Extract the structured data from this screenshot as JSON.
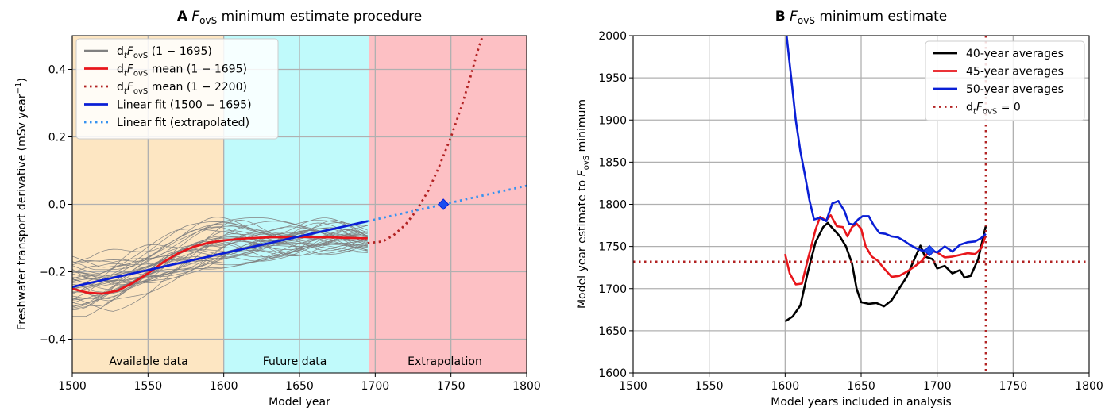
{
  "chart_data": [
    {
      "type": "line",
      "panel": "A",
      "title": "F_ovS minimum estimate procedure",
      "xlabel": "Model year",
      "ylabel": "Freshwater transport derivative (mSv year⁻¹)",
      "xlim": [
        1500,
        1800
      ],
      "ylim": [
        -0.5,
        0.5
      ],
      "xticks": [
        1500,
        1550,
        1600,
        1650,
        1700,
        1750,
        1800
      ],
      "yticks": [
        -0.4,
        -0.2,
        0.0,
        0.2,
        0.4
      ],
      "xtick_labels": [
        "1500",
        "1550",
        "1600",
        "1650",
        "1700",
        "1750",
        "1800"
      ],
      "ytick_labels": [
        "−0.4",
        "−0.2",
        "0.0",
        "0.2",
        "0.4"
      ],
      "grid": true,
      "legend_position": "top-left",
      "regions": [
        {
          "label": "Available data",
          "x0": 1500,
          "x1": 1600,
          "color": "#fde6c2"
        },
        {
          "label": "Future data",
          "x0": 1600,
          "x1": 1696,
          "color": "#c0fafb"
        },
        {
          "label": "Extrapolation",
          "x0": 1696,
          "x1": 1800,
          "color": "#fdc0c4"
        }
      ],
      "series": [
        {
          "name": "dtFovS (1 − 1695)",
          "legend_base": "d",
          "legend_sub": "t",
          "legend_main": "F",
          "legend_msub": "ovS",
          "legend_suffix": " (1 − 1695)",
          "color": "#808080",
          "style": "solid",
          "kind": "ensemble",
          "x_range": [
            1500,
            1695
          ],
          "count": 40,
          "mean": [
            [
              1500,
              -0.235
            ],
            [
              1520,
              -0.245
            ],
            [
              1545,
              -0.205
            ],
            [
              1570,
              -0.15
            ],
            [
              1600,
              -0.118
            ],
            [
              1630,
              -0.105
            ],
            [
              1660,
              -0.102
            ],
            [
              1695,
              -0.108
            ]
          ]
        },
        {
          "name": "dtFovS mean (1 − 1695)",
          "legend_base": "d",
          "legend_sub": "t",
          "legend_main": "F",
          "legend_msub": "ovS",
          "legend_suffix": " mean (1 − 1695)",
          "color": "#e8161b",
          "style": "solid",
          "points": [
            [
              1500,
              -0.25
            ],
            [
              1510,
              -0.262
            ],
            [
              1520,
              -0.265
            ],
            [
              1530,
              -0.256
            ],
            [
              1540,
              -0.233
            ],
            [
              1550,
              -0.205
            ],
            [
              1560,
              -0.172
            ],
            [
              1570,
              -0.145
            ],
            [
              1580,
              -0.126
            ],
            [
              1590,
              -0.114
            ],
            [
              1600,
              -0.107
            ],
            [
              1615,
              -0.101
            ],
            [
              1630,
              -0.098
            ],
            [
              1650,
              -0.097
            ],
            [
              1670,
              -0.098
            ],
            [
              1685,
              -0.1
            ],
            [
              1695,
              -0.101
            ]
          ]
        },
        {
          "name": "dtFovS mean (1 − 2200)",
          "legend_base": "d",
          "legend_sub": "t",
          "legend_main": "F",
          "legend_msub": "ovS",
          "legend_suffix": " mean (1 − 2200)",
          "color": "#b22222",
          "style": "dotted",
          "points": [
            [
              1695,
              -0.115
            ],
            [
              1705,
              -0.11
            ],
            [
              1712,
              -0.092
            ],
            [
              1720,
              -0.06
            ],
            [
              1727,
              -0.02
            ],
            [
              1735,
              0.04
            ],
            [
              1742,
              0.11
            ],
            [
              1750,
              0.2
            ],
            [
              1757,
              0.29
            ],
            [
              1763,
              0.38
            ],
            [
              1768,
              0.46
            ],
            [
              1771,
              0.5
            ]
          ]
        },
        {
          "name": "Linear fit (1500 − 1695)",
          "legend_plain": "Linear fit (1500 − 1695)",
          "color": "#0a1fd6",
          "style": "solid",
          "points": [
            [
              1500,
              -0.245
            ],
            [
              1695,
              -0.05
            ]
          ]
        },
        {
          "name": "Linear fit (extrapolated)",
          "legend_plain": "Linear fit (extrapolated)",
          "color": "#3592f0",
          "style": "dotted",
          "points": [
            [
              1695,
              -0.05
            ],
            [
              1800,
              0.055
            ]
          ]
        }
      ],
      "marker": {
        "x": 1745,
        "y": 0.0,
        "color": "#1c4cf0",
        "shape": "diamond"
      }
    },
    {
      "type": "line",
      "panel": "B",
      "title": "F_ovS minimum estimate",
      "xlabel": "Model years included in analysis",
      "ylabel": "Model year estimate to F_ovS minimum",
      "xlim": [
        1500,
        1800
      ],
      "ylim": [
        1600,
        2000
      ],
      "xticks": [
        1500,
        1550,
        1600,
        1650,
        1700,
        1750,
        1800
      ],
      "yticks": [
        1600,
        1650,
        1700,
        1750,
        1800,
        1850,
        1900,
        1950,
        2000
      ],
      "xtick_labels": [
        "1500",
        "1550",
        "1600",
        "1650",
        "1700",
        "1750",
        "1800"
      ],
      "ytick_labels": [
        "1600",
        "1650",
        "1700",
        "1750",
        "1800",
        "1850",
        "1900",
        "1950",
        "2000"
      ],
      "grid": true,
      "legend_position": "top-right",
      "series": [
        {
          "name": "40-year averages",
          "legend_plain": "40-year averages",
          "color": "#000000",
          "style": "solid",
          "points": [
            [
              1600,
              1661
            ],
            [
              1605,
              1667
            ],
            [
              1610,
              1680
            ],
            [
              1615,
              1720
            ],
            [
              1620,
              1755
            ],
            [
              1625,
              1773
            ],
            [
              1628,
              1778
            ],
            [
              1632,
              1770
            ],
            [
              1636,
              1762
            ],
            [
              1640,
              1750
            ],
            [
              1644,
              1730
            ],
            [
              1647,
              1700
            ],
            [
              1650,
              1684
            ],
            [
              1655,
              1682
            ],
            [
              1660,
              1683
            ],
            [
              1665,
              1679
            ],
            [
              1670,
              1686
            ],
            [
              1675,
              1700
            ],
            [
              1680,
              1714
            ],
            [
              1685,
              1735
            ],
            [
              1689,
              1751
            ],
            [
              1692,
              1738
            ],
            [
              1697,
              1735
            ],
            [
              1700,
              1724
            ],
            [
              1705,
              1727
            ],
            [
              1710,
              1718
            ],
            [
              1715,
              1722
            ],
            [
              1718,
              1713
            ],
            [
              1722,
              1715
            ],
            [
              1727,
              1735
            ],
            [
              1732,
              1774
            ]
          ]
        },
        {
          "name": "45-year averages",
          "legend_plain": "45-year averages",
          "color": "#e8161b",
          "style": "solid",
          "points": [
            [
              1600,
              1741
            ],
            [
              1603,
              1718
            ],
            [
              1607,
              1705
            ],
            [
              1611,
              1706
            ],
            [
              1615,
              1735
            ],
            [
              1620,
              1770
            ],
            [
              1623,
              1785
            ],
            [
              1627,
              1781
            ],
            [
              1630,
              1787
            ],
            [
              1634,
              1774
            ],
            [
              1638,
              1773
            ],
            [
              1641,
              1762
            ],
            [
              1644,
              1773
            ],
            [
              1647,
              1777
            ],
            [
              1650,
              1771
            ],
            [
              1653,
              1750
            ],
            [
              1657,
              1738
            ],
            [
              1661,
              1733
            ],
            [
              1665,
              1724
            ],
            [
              1670,
              1714
            ],
            [
              1675,
              1715
            ],
            [
              1680,
              1720
            ],
            [
              1685,
              1726
            ],
            [
              1690,
              1733
            ],
            [
              1695,
              1745
            ],
            [
              1700,
              1743
            ],
            [
              1705,
              1737
            ],
            [
              1710,
              1738
            ],
            [
              1715,
              1740
            ],
            [
              1720,
              1742
            ],
            [
              1725,
              1741
            ],
            [
              1729,
              1748
            ],
            [
              1732,
              1763
            ]
          ]
        },
        {
          "name": "50-year averages",
          "legend_plain": "50-year averages",
          "color": "#0a1fd6",
          "style": "solid",
          "points": [
            [
              1601,
              2000
            ],
            [
              1604,
              1950
            ],
            [
              1607,
              1900
            ],
            [
              1610,
              1863
            ],
            [
              1613,
              1835
            ],
            [
              1616,
              1805
            ],
            [
              1619,
              1782
            ],
            [
              1623,
              1784
            ],
            [
              1627,
              1780
            ],
            [
              1631,
              1801
            ],
            [
              1635,
              1804
            ],
            [
              1639,
              1792
            ],
            [
              1642,
              1777
            ],
            [
              1645,
              1776
            ],
            [
              1648,
              1782
            ],
            [
              1651,
              1786
            ],
            [
              1655,
              1786
            ],
            [
              1658,
              1776
            ],
            [
              1662,
              1766
            ],
            [
              1666,
              1765
            ],
            [
              1670,
              1762
            ],
            [
              1674,
              1761
            ],
            [
              1678,
              1757
            ],
            [
              1682,
              1752
            ],
            [
              1686,
              1748
            ],
            [
              1690,
              1745
            ],
            [
              1695,
              1746
            ],
            [
              1700,
              1743
            ],
            [
              1705,
              1750
            ],
            [
              1710,
              1744
            ],
            [
              1715,
              1752
            ],
            [
              1720,
              1755
            ],
            [
              1725,
              1756
            ],
            [
              1729,
              1760
            ],
            [
              1732,
              1765
            ]
          ]
        },
        {
          "name": "dtFovS = 0",
          "legend_base": "d",
          "legend_sub": "t",
          "legend_main": "F",
          "legend_msub": "ovS",
          "legend_suffix": " = 0",
          "color": "#b22222",
          "style": "dotted",
          "kind": "crosshair",
          "x": 1732,
          "y": 1732
        }
      ],
      "marker": {
        "x": 1695,
        "y": 1745,
        "color": "#1c4cf0",
        "shape": "diamond"
      }
    }
  ],
  "panels": {
    "a": {
      "letter": "A",
      "title_main": "F",
      "title_sub": "ovS",
      "title_rest": " minimum estimate procedure"
    },
    "b": {
      "letter": "B",
      "title_main": "F",
      "title_sub": "ovS",
      "title_rest": " minimum estimate"
    }
  },
  "regions_text": {
    "available": "Available data",
    "future": "Future data",
    "extrapolation": "Extrapolation"
  },
  "axes_text": {
    "a_xlabel": "Model year",
    "a_ylabel_main": "Freshwater transport derivative (mSv year",
    "a_ylabel_sup": "−1",
    "a_ylabel_end": ")",
    "b_xlabel": "Model years included in analysis",
    "b_ylabel_main": "Model year estimate to ",
    "b_ylabel_F": "F",
    "b_ylabel_sub": "ovS",
    "b_ylabel_end": " minimum"
  }
}
